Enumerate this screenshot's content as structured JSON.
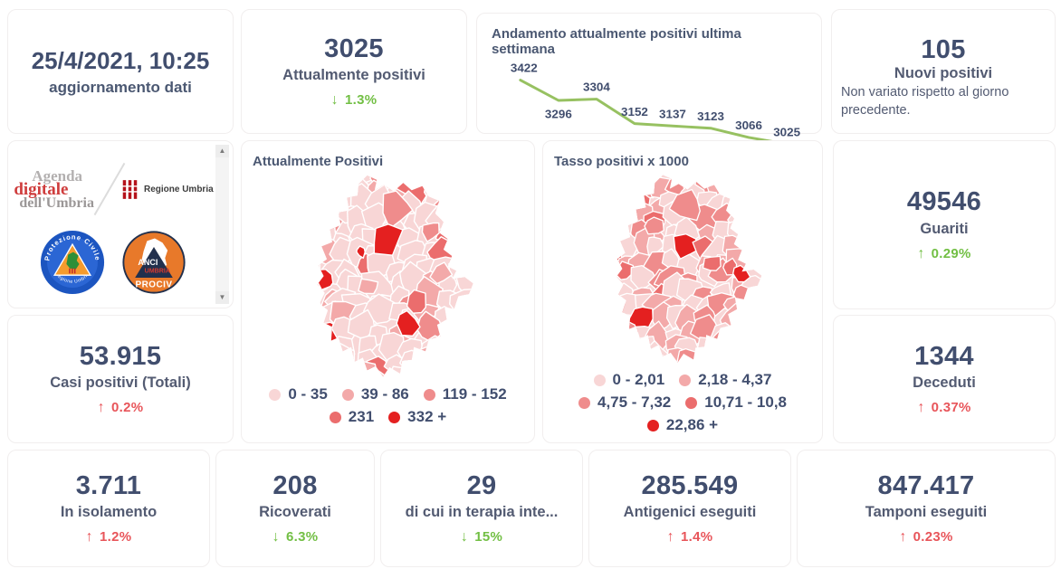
{
  "colors": {
    "number": "#414e6e",
    "label": "#535b72",
    "positive_green": "#72bf44",
    "negative_red": "#e8555a",
    "trend_line_green": "#97c161",
    "legend_palette": [
      "#f8d6d6",
      "#f3a9a9",
      "#ef8c8c",
      "#eb6d6d",
      "#e42020"
    ]
  },
  "icons": {
    "arrow_up": "↑",
    "arrow_down": "↓",
    "scroll_up": "▲",
    "scroll_down": "▼"
  },
  "cards": {
    "updated": {
      "value": "25/4/2021, 10:25",
      "label": "aggiornamento dati"
    },
    "attualmente_positivi": {
      "value": "3025",
      "label": "Attualmente positivi",
      "arrow": "↓",
      "delta": "1.3%",
      "trend": "green"
    },
    "nuovi_positivi": {
      "value": "105",
      "label": "Nuovi positivi",
      "note": "Non variato rispetto al giorno precedente."
    },
    "casi_totali": {
      "value": "53.915",
      "label": "Casi positivi (Totali)",
      "arrow": "↑",
      "delta": "0.2%",
      "trend": "red"
    },
    "guariti": {
      "value": "49546",
      "label": "Guariti",
      "arrow": "↑",
      "delta": "0.29%",
      "trend": "green"
    },
    "deceduti": {
      "value": "1344",
      "label": "Deceduti",
      "arrow": "↑",
      "delta": "0.37%",
      "trend": "red"
    },
    "in_isolamento": {
      "value": "3.711",
      "label": "In isolamento",
      "arrow": "↑",
      "delta": "1.2%",
      "trend": "red"
    },
    "ricoverati": {
      "value": "208",
      "label": "Ricoverati",
      "arrow": "↓",
      "delta": "6.3%",
      "trend": "green"
    },
    "terapia_intensiva": {
      "value": "29",
      "label": "di cui in terapia inte...",
      "arrow": "↓",
      "delta": "15%",
      "trend": "green"
    },
    "antigenici": {
      "value": "285.549",
      "label": "Antigenici eseguiti",
      "arrow": "↑",
      "delta": "1.4%",
      "trend": "red"
    },
    "tamponi": {
      "value": "847.417",
      "label": "Tamponi eseguiti",
      "arrow": "↑",
      "delta": "0.23%",
      "trend": "red"
    }
  },
  "logos": {
    "agenda": {
      "line1": "Agenda",
      "line2": "digitale",
      "line3": "dell'Umbria"
    },
    "regione": {
      "label": "Regione Umbria"
    },
    "protezione": {
      "top": "Protezione Civile",
      "bottom": "Regione Umbria"
    },
    "anci": {
      "line1": "ANCI",
      "line2": "UMBRIA",
      "line3": "PROCIV"
    }
  },
  "chart_data": [
    {
      "type": "line",
      "title": "Andamento attualmente positivi ultima settimana",
      "x": [
        1,
        2,
        3,
        4,
        5,
        6,
        7,
        8
      ],
      "values": [
        3422,
        3296,
        3304,
        3152,
        3137,
        3123,
        3066,
        3025
      ],
      "line_color": "#97c161",
      "data_labels": true,
      "axes_hidden": true,
      "xlabel": "",
      "ylabel": ""
    },
    {
      "type": "choropleth",
      "title": "Attualmente Positivi",
      "region": "Umbria",
      "legend": [
        {
          "label": "0 - 35",
          "color": "#f8d6d6"
        },
        {
          "label": "39 - 86",
          "color": "#f3a9a9"
        },
        {
          "label": "119 - 152",
          "color": "#ef8c8c"
        },
        {
          "label": "231",
          "color": "#eb6d6d"
        },
        {
          "label": "332 +",
          "color": "#e42020"
        }
      ]
    },
    {
      "type": "choropleth",
      "title": "Tasso positivi x 1000",
      "region": "Umbria",
      "legend": [
        {
          "label": "0 - 2,01",
          "color": "#f8d6d6"
        },
        {
          "label": "2,18 - 4,37",
          "color": "#f3a9a9"
        },
        {
          "label": "4,75 - 7,32",
          "color": "#ef8c8c"
        },
        {
          "label": "10,71 - 10,8",
          "color": "#eb6d6d"
        },
        {
          "label": "22,86 +",
          "color": "#e42020"
        }
      ]
    }
  ]
}
